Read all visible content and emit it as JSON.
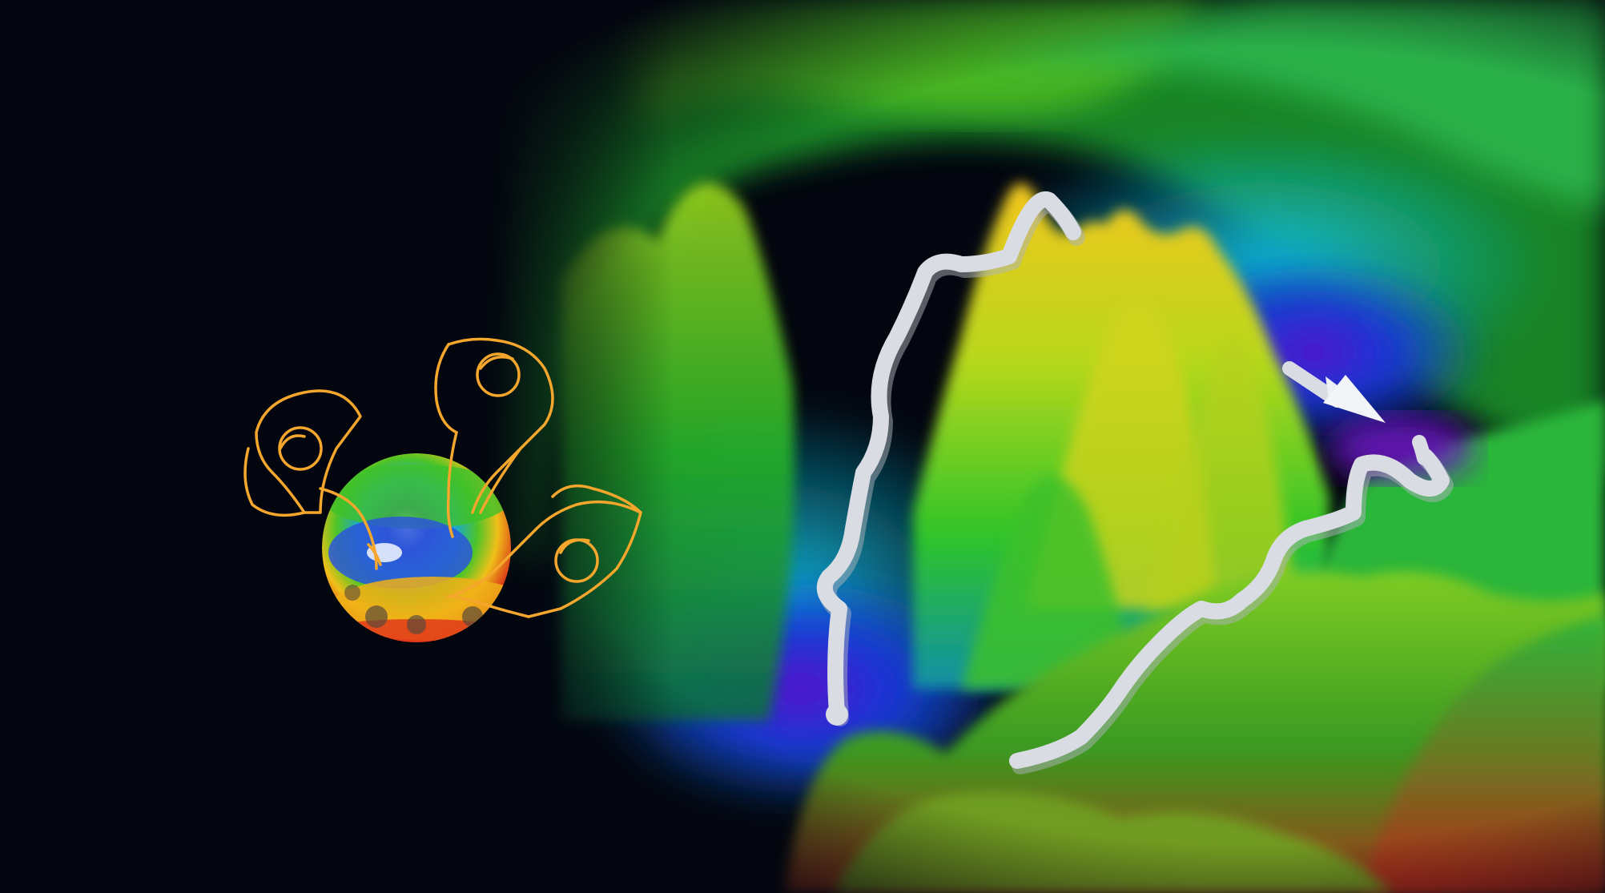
{
  "scene": {
    "background_color": "#03060f",
    "landscape_palette": [
      "#3a0a6e",
      "#5b17c9",
      "#1a3bd6",
      "#0a8fd8",
      "#14c7c0",
      "#22c72a",
      "#8fd61c",
      "#e6e01a",
      "#f0a010",
      "#d8281a"
    ],
    "path_color": "#d9dde3",
    "outline_color": "#f5a62c",
    "icons": [
      "energy-landscape",
      "descent-path-arrow",
      "collaborating-people-around-globe"
    ]
  }
}
